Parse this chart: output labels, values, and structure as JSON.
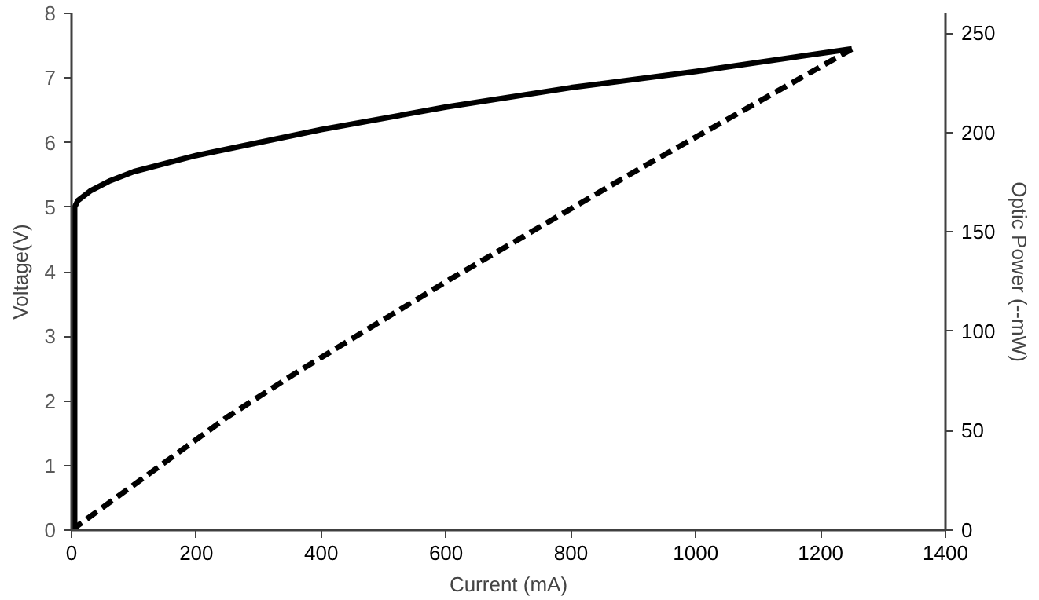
{
  "chart_data": {
    "type": "line",
    "xlabel": "Current (mA)",
    "ylabel": "Voltage(V)",
    "y2label": "Optic Power (--mW)",
    "xlim": [
      0,
      1400
    ],
    "xticks": [
      0,
      200,
      400,
      600,
      800,
      1000,
      1200,
      1400
    ],
    "ylim": [
      0,
      8
    ],
    "yticks": [
      0,
      1,
      2,
      3,
      4,
      5,
      6,
      7,
      8
    ],
    "y2lim": [
      0,
      260
    ],
    "y2ticks": [
      0,
      50,
      100,
      150,
      200,
      250
    ],
    "grid": false,
    "series": [
      {
        "color": "#000000",
        "line_style": "solid",
        "x": [
          5,
          5,
          10,
          30,
          60,
          100,
          200,
          400,
          600,
          800,
          1000,
          1250
        ],
        "values": [
          0,
          5.0,
          5.1,
          5.25,
          5.4,
          5.55,
          5.8,
          6.2,
          6.55,
          6.85,
          7.1,
          7.45
        ]
      },
      {
        "color": "#000000",
        "line_style": "dashed",
        "axis": "y2",
        "x": [
          0,
          250,
          364,
          600,
          900,
          1250
        ],
        "values": [
          0,
          57,
          80,
          125,
          180,
          242
        ]
      }
    ]
  }
}
